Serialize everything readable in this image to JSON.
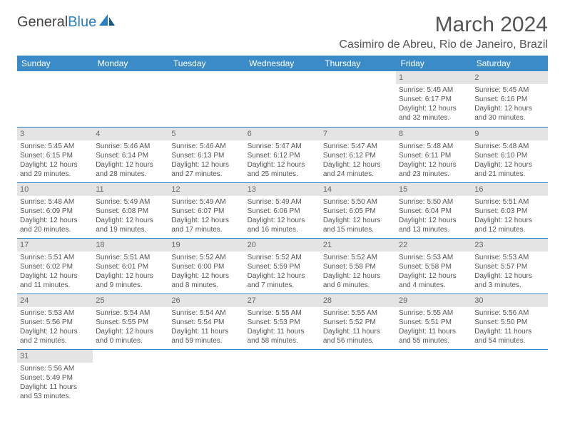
{
  "logo": {
    "text1": "General",
    "text2": "Blue"
  },
  "title": "March 2024",
  "location": "Casimiro de Abreu, Rio de Janeiro, Brazil",
  "colors": {
    "header_bg": "#3b8bc9",
    "header_text": "#ffffff",
    "daynum_bg": "#e4e4e4",
    "rule": "#2b7fc3",
    "body_text": "#555555",
    "logo_blue": "#2b7fc3"
  },
  "day_headers": [
    "Sunday",
    "Monday",
    "Tuesday",
    "Wednesday",
    "Thursday",
    "Friday",
    "Saturday"
  ],
  "weeks": [
    [
      null,
      null,
      null,
      null,
      null,
      {
        "n": "1",
        "sr": "5:45 AM",
        "ss": "6:17 PM",
        "dl": "12 hours and 32 minutes."
      },
      {
        "n": "2",
        "sr": "5:45 AM",
        "ss": "6:16 PM",
        "dl": "12 hours and 30 minutes."
      }
    ],
    [
      {
        "n": "3",
        "sr": "5:45 AM",
        "ss": "6:15 PM",
        "dl": "12 hours and 29 minutes."
      },
      {
        "n": "4",
        "sr": "5:46 AM",
        "ss": "6:14 PM",
        "dl": "12 hours and 28 minutes."
      },
      {
        "n": "5",
        "sr": "5:46 AM",
        "ss": "6:13 PM",
        "dl": "12 hours and 27 minutes."
      },
      {
        "n": "6",
        "sr": "5:47 AM",
        "ss": "6:12 PM",
        "dl": "12 hours and 25 minutes."
      },
      {
        "n": "7",
        "sr": "5:47 AM",
        "ss": "6:12 PM",
        "dl": "12 hours and 24 minutes."
      },
      {
        "n": "8",
        "sr": "5:48 AM",
        "ss": "6:11 PM",
        "dl": "12 hours and 23 minutes."
      },
      {
        "n": "9",
        "sr": "5:48 AM",
        "ss": "6:10 PM",
        "dl": "12 hours and 21 minutes."
      }
    ],
    [
      {
        "n": "10",
        "sr": "5:48 AM",
        "ss": "6:09 PM",
        "dl": "12 hours and 20 minutes."
      },
      {
        "n": "11",
        "sr": "5:49 AM",
        "ss": "6:08 PM",
        "dl": "12 hours and 19 minutes."
      },
      {
        "n": "12",
        "sr": "5:49 AM",
        "ss": "6:07 PM",
        "dl": "12 hours and 17 minutes."
      },
      {
        "n": "13",
        "sr": "5:49 AM",
        "ss": "6:06 PM",
        "dl": "12 hours and 16 minutes."
      },
      {
        "n": "14",
        "sr": "5:50 AM",
        "ss": "6:05 PM",
        "dl": "12 hours and 15 minutes."
      },
      {
        "n": "15",
        "sr": "5:50 AM",
        "ss": "6:04 PM",
        "dl": "12 hours and 13 minutes."
      },
      {
        "n": "16",
        "sr": "5:51 AM",
        "ss": "6:03 PM",
        "dl": "12 hours and 12 minutes."
      }
    ],
    [
      {
        "n": "17",
        "sr": "5:51 AM",
        "ss": "6:02 PM",
        "dl": "12 hours and 11 minutes."
      },
      {
        "n": "18",
        "sr": "5:51 AM",
        "ss": "6:01 PM",
        "dl": "12 hours and 9 minutes."
      },
      {
        "n": "19",
        "sr": "5:52 AM",
        "ss": "6:00 PM",
        "dl": "12 hours and 8 minutes."
      },
      {
        "n": "20",
        "sr": "5:52 AM",
        "ss": "5:59 PM",
        "dl": "12 hours and 7 minutes."
      },
      {
        "n": "21",
        "sr": "5:52 AM",
        "ss": "5:58 PM",
        "dl": "12 hours and 6 minutes."
      },
      {
        "n": "22",
        "sr": "5:53 AM",
        "ss": "5:58 PM",
        "dl": "12 hours and 4 minutes."
      },
      {
        "n": "23",
        "sr": "5:53 AM",
        "ss": "5:57 PM",
        "dl": "12 hours and 3 minutes."
      }
    ],
    [
      {
        "n": "24",
        "sr": "5:53 AM",
        "ss": "5:56 PM",
        "dl": "12 hours and 2 minutes."
      },
      {
        "n": "25",
        "sr": "5:54 AM",
        "ss": "5:55 PM",
        "dl": "12 hours and 0 minutes."
      },
      {
        "n": "26",
        "sr": "5:54 AM",
        "ss": "5:54 PM",
        "dl": "11 hours and 59 minutes."
      },
      {
        "n": "27",
        "sr": "5:55 AM",
        "ss": "5:53 PM",
        "dl": "11 hours and 58 minutes."
      },
      {
        "n": "28",
        "sr": "5:55 AM",
        "ss": "5:52 PM",
        "dl": "11 hours and 56 minutes."
      },
      {
        "n": "29",
        "sr": "5:55 AM",
        "ss": "5:51 PM",
        "dl": "11 hours and 55 minutes."
      },
      {
        "n": "30",
        "sr": "5:56 AM",
        "ss": "5:50 PM",
        "dl": "11 hours and 54 minutes."
      }
    ],
    [
      {
        "n": "31",
        "sr": "5:56 AM",
        "ss": "5:49 PM",
        "dl": "11 hours and 53 minutes."
      },
      null,
      null,
      null,
      null,
      null,
      null
    ]
  ],
  "labels": {
    "sunrise": "Sunrise: ",
    "sunset": "Sunset: ",
    "daylight": "Daylight: "
  }
}
